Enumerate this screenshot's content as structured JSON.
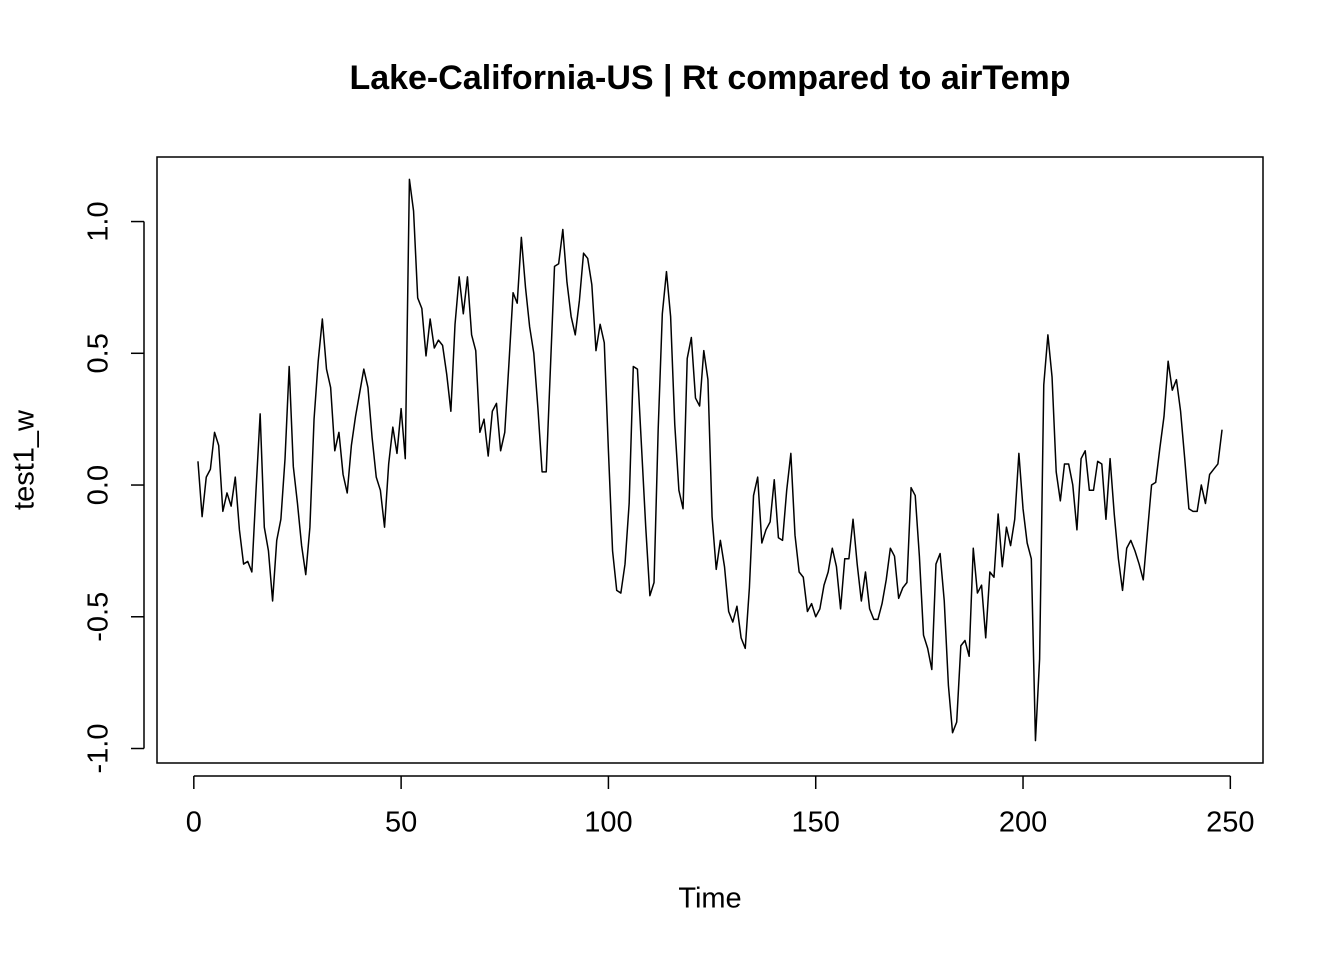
{
  "chart_data": {
    "type": "line",
    "title": "Lake-California-US | Rt compared to airTemp",
    "x_label": "Time",
    "y_label": "test1_w",
    "xlim": [
      -8.88,
      257.88
    ],
    "ylim": [
      -1.055,
      1.245
    ],
    "xticks": [
      0,
      50,
      100,
      150,
      200,
      250
    ],
    "yticks": [
      {
        "value": -1,
        "label": "-1.0"
      },
      {
        "value": -0.5,
        "label": "-0.5"
      },
      {
        "value": 0,
        "label": "0.0"
      },
      {
        "value": 0.5,
        "label": "0.5"
      },
      {
        "value": 1,
        "label": "1.0"
      }
    ],
    "color": "#000000",
    "x": [
      1,
      2,
      3,
      4,
      5,
      6,
      7,
      8,
      9,
      10,
      11,
      12,
      13,
      14,
      15,
      16,
      17,
      18,
      19,
      20,
      21,
      22,
      23,
      24,
      25,
      26,
      27,
      28,
      29,
      30,
      31,
      32,
      33,
      34,
      35,
      36,
      37,
      38,
      39,
      40,
      41,
      42,
      43,
      44,
      45,
      46,
      47,
      48,
      49,
      50,
      51,
      52,
      53,
      54,
      55,
      56,
      57,
      58,
      59,
      60,
      61,
      62,
      63,
      64,
      65,
      66,
      67,
      68,
      69,
      70,
      71,
      72,
      73,
      74,
      75,
      76,
      77,
      78,
      79,
      80,
      81,
      82,
      83,
      84,
      85,
      86,
      87,
      88,
      89,
      90,
      91,
      92,
      93,
      94,
      95,
      96,
      97,
      98,
      99,
      100,
      101,
      102,
      103,
      104,
      105,
      106,
      107,
      108,
      109,
      110,
      111,
      112,
      113,
      114,
      115,
      116,
      117,
      118,
      119,
      120,
      121,
      122,
      123,
      124,
      125,
      126,
      127,
      128,
      129,
      130,
      131,
      132,
      133,
      134,
      135,
      136,
      137,
      138,
      139,
      140,
      141,
      142,
      143,
      144,
      145,
      146,
      147,
      148,
      149,
      150,
      151,
      152,
      153,
      154,
      155,
      156,
      157,
      158,
      159,
      160,
      161,
      162,
      163,
      164,
      165,
      166,
      167,
      168,
      169,
      170,
      171,
      172,
      173,
      174,
      175,
      176,
      177,
      178,
      179,
      180,
      181,
      182,
      183,
      184,
      185,
      186,
      187,
      188,
      189,
      190,
      191,
      192,
      193,
      194,
      195,
      196,
      197,
      198,
      199,
      200,
      201,
      202,
      203,
      204,
      205,
      206,
      207,
      208,
      209,
      210,
      211,
      212,
      213,
      214,
      215,
      216,
      217,
      218,
      219,
      220,
      221,
      222,
      223,
      224,
      225,
      226,
      227,
      228,
      229,
      230,
      231,
      232,
      233,
      234,
      235,
      236,
      237,
      238,
      239,
      240,
      241,
      242,
      243,
      244,
      245,
      246,
      247,
      248
    ],
    "values": [
      0.09,
      -0.12,
      0.03,
      0.06,
      0.2,
      0.15,
      -0.1,
      -0.03,
      -0.08,
      0.03,
      -0.17,
      -0.3,
      -0.29,
      -0.33,
      -0.02,
      0.27,
      -0.16,
      -0.25,
      -0.44,
      -0.21,
      -0.13,
      0.1,
      0.45,
      0.07,
      -0.07,
      -0.23,
      -0.34,
      -0.16,
      0.25,
      0.47,
      0.63,
      0.44,
      0.37,
      0.13,
      0.2,
      0.04,
      -0.03,
      0.15,
      0.26,
      0.35,
      0.44,
      0.37,
      0.18,
      0.03,
      -0.02,
      -0.16,
      0.08,
      0.22,
      0.12,
      0.29,
      0.1,
      1.16,
      1.04,
      0.71,
      0.67,
      0.49,
      0.63,
      0.52,
      0.55,
      0.53,
      0.42,
      0.28,
      0.61,
      0.79,
      0.65,
      0.79,
      0.57,
      0.51,
      0.2,
      0.25,
      0.11,
      0.28,
      0.31,
      0.13,
      0.2,
      0.46,
      0.73,
      0.69,
      0.94,
      0.75,
      0.6,
      0.5,
      0.29,
      0.05,
      0.05,
      0.44,
      0.83,
      0.84,
      0.97,
      0.77,
      0.64,
      0.57,
      0.7,
      0.88,
      0.86,
      0.76,
      0.51,
      0.61,
      0.54,
      0.13,
      -0.25,
      -0.4,
      -0.41,
      -0.3,
      -0.07,
      0.45,
      0.44,
      0.14,
      -0.16,
      -0.42,
      -0.37,
      0.21,
      0.65,
      0.81,
      0.64,
      0.23,
      -0.02,
      -0.09,
      0.48,
      0.56,
      0.33,
      0.3,
      0.51,
      0.4,
      -0.12,
      -0.32,
      -0.21,
      -0.31,
      -0.48,
      -0.52,
      -0.46,
      -0.58,
      -0.62,
      -0.39,
      -0.04,
      0.03,
      -0.22,
      -0.17,
      -0.14,
      0.02,
      -0.2,
      -0.21,
      -0.02,
      0.12,
      -0.19,
      -0.33,
      -0.35,
      -0.48,
      -0.45,
      -0.5,
      -0.47,
      -0.38,
      -0.33,
      -0.24,
      -0.31,
      -0.47,
      -0.28,
      -0.28,
      -0.13,
      -0.3,
      -0.44,
      -0.33,
      -0.47,
      -0.51,
      -0.51,
      -0.45,
      -0.36,
      -0.24,
      -0.27,
      -0.43,
      -0.39,
      -0.37,
      -0.01,
      -0.04,
      -0.27,
      -0.57,
      -0.62,
      -0.7,
      -0.3,
      -0.26,
      -0.44,
      -0.76,
      -0.94,
      -0.9,
      -0.61,
      -0.59,
      -0.65,
      -0.24,
      -0.41,
      -0.38,
      -0.58,
      -0.33,
      -0.35,
      -0.11,
      -0.31,
      -0.16,
      -0.23,
      -0.13,
      0.12,
      -0.09,
      -0.22,
      -0.28,
      -0.97,
      -0.66,
      0.38,
      0.57,
      0.41,
      0.05,
      -0.06,
      0.08,
      0.08,
      0.0,
      -0.17,
      0.1,
      0.13,
      -0.02,
      -0.02,
      0.09,
      0.08,
      -0.13,
      0.1,
      -0.11,
      -0.28,
      -0.4,
      -0.24,
      -0.21,
      -0.25,
      -0.3,
      -0.36,
      -0.18,
      0.0,
      0.01,
      0.14,
      0.26,
      0.47,
      0.36,
      0.4,
      0.28,
      0.1,
      -0.09,
      -0.1,
      -0.1,
      0.0,
      -0.07,
      0.04,
      0.06,
      0.08,
      0.21
    ]
  }
}
